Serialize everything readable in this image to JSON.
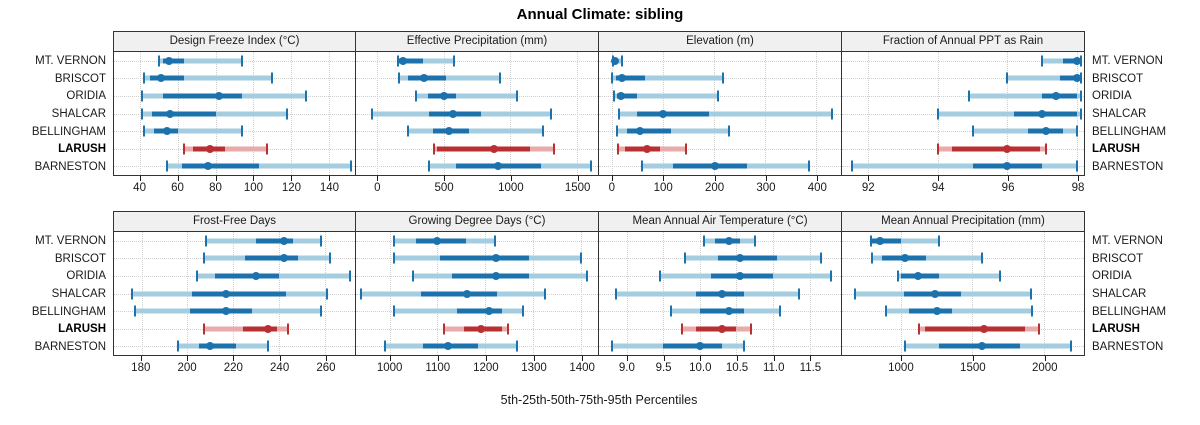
{
  "title": "Annual Climate: sibling",
  "xlabel": "5th-25th-50th-75th-95th Percentiles",
  "colors": {
    "series_blue": "#1b72ad",
    "series_blue_light": "#a5cde2",
    "highlight_red": "#b93030",
    "highlight_red_light": "#e9aaaa",
    "grid": "#cfcfcf",
    "strip_bg": "#f0f0f0",
    "border": "#333333"
  },
  "chart_data": {
    "type": "dotplot-percentile-ranges",
    "percentiles": [
      5,
      25,
      50,
      75,
      95
    ],
    "stations": [
      "MT. VERNON",
      "BRISCOT",
      "ORIDIA",
      "SHALCAR",
      "BELLINGHAM",
      "LARUSH",
      "BARNESTON"
    ],
    "highlight_station": "LARUSH",
    "legend_note": "values per station are [5th, 25th, 50th, 75th, 95th] percentiles",
    "panels": [
      {
        "id": "design-freeze-index",
        "row": 1,
        "title": "Design Freeze Index (°C)",
        "xlim": [
          26,
          154
        ],
        "ticks": [
          40,
          60,
          80,
          100,
          120,
          140
        ],
        "tick_labels": [
          "40",
          "60",
          "80",
          "100",
          "120",
          "140"
        ],
        "series": [
          [
            50,
            52,
            55,
            63,
            94
          ],
          [
            42,
            45,
            51,
            63,
            110
          ],
          [
            41,
            52,
            82,
            94,
            128
          ],
          [
            41,
            46,
            56,
            80,
            118
          ],
          [
            42,
            47,
            54,
            60,
            94
          ],
          [
            63,
            68,
            77,
            85,
            107
          ],
          [
            54,
            62,
            76,
            103,
            152
          ]
        ]
      },
      {
        "id": "effective-precipitation",
        "row": 1,
        "title": "Effective Precipitation (mm)",
        "xlim": [
          -160,
          1660
        ],
        "ticks": [
          0,
          500,
          1000,
          1500
        ],
        "tick_labels": [
          "0",
          "500",
          "1000",
          "1500"
        ],
        "series": [
          [
            155,
            165,
            190,
            345,
            580
          ],
          [
            160,
            230,
            350,
            520,
            925
          ],
          [
            290,
            380,
            500,
            590,
            1050
          ],
          [
            -40,
            390,
            570,
            780,
            1310
          ],
          [
            230,
            420,
            540,
            690,
            1250
          ],
          [
            430,
            450,
            880,
            1150,
            1330
          ],
          [
            390,
            590,
            910,
            1230,
            1610
          ]
        ]
      },
      {
        "id": "elevation",
        "row": 1,
        "title": "Elevation (m)",
        "xlim": [
          -25,
          448
        ],
        "ticks": [
          0,
          100,
          200,
          300,
          400
        ],
        "tick_labels": [
          "0",
          "100",
          "200",
          "300",
          "400"
        ],
        "series": [
          [
            2,
            3,
            7,
            12,
            20
          ],
          [
            0,
            8,
            20,
            65,
            218
          ],
          [
            5,
            10,
            18,
            50,
            207
          ],
          [
            15,
            50,
            100,
            190,
            430
          ],
          [
            10,
            30,
            55,
            115,
            230
          ],
          [
            12,
            25,
            68,
            95,
            145
          ],
          [
            60,
            120,
            202,
            265,
            385
          ]
        ]
      },
      {
        "id": "fraction-annual-ppt-as-rain",
        "row": 1,
        "title": "Fraction of Annual PPT as Rain",
        "xlim": [
          91.25,
          98.2
        ],
        "ticks": [
          92,
          94,
          96,
          98
        ],
        "tick_labels": [
          "92",
          "94",
          "96",
          "98"
        ],
        "series": [
          [
            97.0,
            97.6,
            98.0,
            98.05,
            98.1
          ],
          [
            96.0,
            97.5,
            98.0,
            98.05,
            98.1
          ],
          [
            94.9,
            97.0,
            97.4,
            98.0,
            98.1
          ],
          [
            94.0,
            96.2,
            97.0,
            98.0,
            98.1
          ],
          [
            95.0,
            96.6,
            97.1,
            97.6,
            98.0
          ],
          [
            94.0,
            94.4,
            96.0,
            96.95,
            97.1
          ],
          [
            91.55,
            95.0,
            96.0,
            97.0,
            98.0
          ]
        ]
      },
      {
        "id": "frost-free-days",
        "row": 2,
        "title": "Frost-Free Days",
        "xlim": [
          168,
          273
        ],
        "ticks": [
          180,
          200,
          220,
          240,
          260
        ],
        "tick_labels": [
          "180",
          "200",
          "220",
          "240",
          "260"
        ],
        "series": [
          [
            208,
            230,
            242,
            246,
            258
          ],
          [
            207,
            225,
            242,
            248,
            262
          ],
          [
            204,
            212,
            230,
            240,
            271
          ],
          [
            176,
            202,
            217,
            243,
            261
          ],
          [
            177,
            201,
            217,
            228,
            258
          ],
          [
            207,
            224,
            235,
            239,
            244
          ],
          [
            196,
            205,
            210,
            221,
            235
          ]
        ]
      },
      {
        "id": "growing-degree-days",
        "row": 2,
        "title": "Growing Degree Days (°C)",
        "xlim": [
          930,
          1435
        ],
        "ticks": [
          1000,
          1100,
          1200,
          1300,
          1400
        ],
        "tick_labels": [
          "1000",
          "1100",
          "1200",
          "1300",
          "1400"
        ],
        "series": [
          [
            1010,
            1055,
            1098,
            1160,
            1220
          ],
          [
            1010,
            1105,
            1222,
            1290,
            1400
          ],
          [
            1048,
            1130,
            1222,
            1290,
            1412
          ],
          [
            940,
            1065,
            1162,
            1225,
            1325
          ],
          [
            1010,
            1140,
            1207,
            1235,
            1278
          ],
          [
            1113,
            1155,
            1190,
            1235,
            1248
          ],
          [
            990,
            1070,
            1123,
            1185,
            1265
          ]
        ]
      },
      {
        "id": "mean-annual-air-temperature",
        "row": 2,
        "title": "Mean Annual Air Temperature (°C)",
        "xlim": [
          8.62,
          11.93
        ],
        "ticks": [
          9.0,
          9.5,
          10.0,
          10.5,
          11.0,
          11.5
        ],
        "tick_labels": [
          "9.0",
          "9.5",
          "10.0",
          "10.5",
          "11.0",
          "11.5"
        ],
        "series": [
          [
            10.05,
            10.2,
            10.4,
            10.55,
            10.75
          ],
          [
            9.8,
            10.25,
            10.55,
            11.05,
            11.65
          ],
          [
            9.45,
            10.15,
            10.55,
            11.0,
            11.8
          ],
          [
            8.85,
            9.95,
            10.3,
            10.6,
            11.35
          ],
          [
            9.6,
            10.0,
            10.4,
            10.6,
            11.1
          ],
          [
            9.75,
            9.95,
            10.3,
            10.5,
            10.7
          ],
          [
            8.8,
            9.5,
            10.0,
            10.3,
            10.6
          ]
        ]
      },
      {
        "id": "mean-annual-precipitation",
        "row": 2,
        "title": "Mean Annual Precipitation (mm)",
        "xlim": [
          590,
          2280
        ],
        "ticks": [
          1000,
          1500,
          2000
        ],
        "tick_labels": [
          "1000",
          "1500",
          "2000"
        ],
        "series": [
          [
            790,
            800,
            855,
            1000,
            1270
          ],
          [
            800,
            870,
            1030,
            1180,
            1570
          ],
          [
            980,
            1000,
            1120,
            1270,
            1690
          ],
          [
            680,
            1020,
            1240,
            1420,
            1910
          ],
          [
            900,
            1060,
            1250,
            1360,
            1915
          ],
          [
            1130,
            1170,
            1580,
            1870,
            1965
          ],
          [
            1030,
            1270,
            1570,
            1830,
            2190
          ]
        ]
      }
    ]
  }
}
